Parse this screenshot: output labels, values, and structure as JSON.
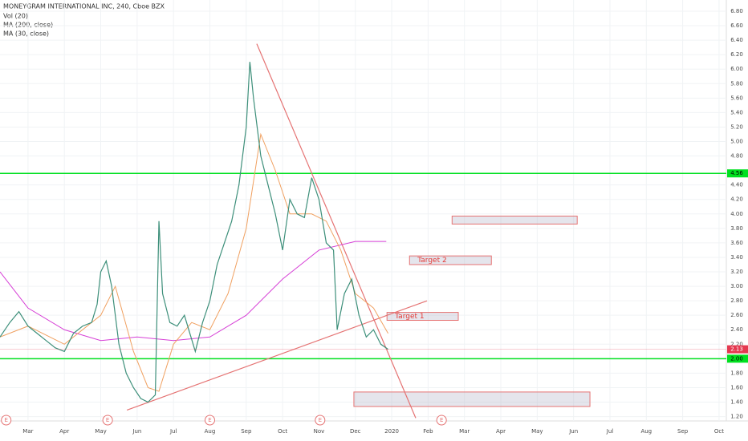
{
  "chart_data": {
    "type": "line",
    "title": "MONEYGRAM INTERNATIONAL INC, 240, Cboe BZX",
    "volume_label": "Vol (20)",
    "color": "#3d8f7a",
    "x": [
      -0.77,
      -0.5,
      -0.25,
      0,
      0.25,
      0.5,
      0.75,
      1.0,
      1.25,
      1.5,
      1.75,
      1.9,
      2.0,
      2.15,
      2.3,
      2.5,
      2.7,
      2.9,
      3.1,
      3.3,
      3.5,
      3.6,
      3.7,
      3.9,
      4.1,
      4.3,
      4.6,
      4.8,
      5.0,
      5.2,
      5.4,
      5.6,
      5.8,
      6.0,
      6.1,
      6.2,
      6.4,
      6.6,
      6.8,
      7.0,
      7.2,
      7.4,
      7.6,
      7.8,
      8.0,
      8.2,
      8.4,
      8.5,
      8.7,
      8.9,
      9.1,
      9.3,
      9.5,
      9.7,
      9.9
    ],
    "values": [
      2.3,
      2.5,
      2.65,
      2.45,
      2.35,
      2.25,
      2.15,
      2.1,
      2.35,
      2.45,
      2.5,
      2.75,
      3.2,
      3.35,
      3.0,
      2.2,
      1.8,
      1.6,
      1.45,
      1.4,
      1.5,
      3.9,
      2.9,
      2.5,
      2.45,
      2.6,
      2.1,
      2.5,
      2.8,
      3.3,
      3.6,
      3.9,
      4.4,
      5.2,
      6.1,
      5.6,
      4.8,
      4.4,
      4.0,
      3.5,
      4.2,
      4.0,
      3.95,
      4.5,
      4.2,
      3.6,
      3.5,
      2.4,
      2.9,
      3.1,
      2.6,
      2.3,
      2.4,
      2.2,
      2.13
    ],
    "series": [
      {
        "name": "MA (200, close)",
        "color": "#d63fd6",
        "x": [
          -0.77,
          0,
          1,
          2,
          3,
          4,
          5,
          6,
          7,
          8,
          9,
          9.85
        ],
        "values": [
          3.2,
          2.7,
          2.4,
          2.25,
          2.3,
          2.25,
          2.3,
          2.6,
          3.1,
          3.5,
          3.62,
          3.62
        ]
      },
      {
        "name": "MA (30, close)",
        "color": "#f0a060",
        "x": [
          -0.77,
          0,
          1,
          2,
          2.4,
          2.9,
          3.3,
          3.6,
          4,
          4.5,
          5,
          5.5,
          6,
          6.4,
          6.8,
          7.2,
          7.8,
          8.2,
          8.6,
          9,
          9.5,
          9.9
        ],
        "values": [
          2.3,
          2.45,
          2.2,
          2.6,
          3.0,
          2.1,
          1.6,
          1.55,
          2.2,
          2.5,
          2.4,
          2.9,
          3.8,
          5.1,
          4.6,
          4.0,
          4.0,
          3.9,
          3.5,
          2.9,
          2.7,
          2.35
        ]
      }
    ],
    "xlim": [
      -0.77,
      19.2
    ],
    "xticks": [
      {
        "value": 0,
        "label": "Mar"
      },
      {
        "value": 1,
        "label": "Apr"
      },
      {
        "value": 2,
        "label": "May"
      },
      {
        "value": 3,
        "label": "Jun"
      },
      {
        "value": 4,
        "label": "Jul"
      },
      {
        "value": 5,
        "label": "Aug"
      },
      {
        "value": 6,
        "label": "Sep"
      },
      {
        "value": 7,
        "label": "Oct"
      },
      {
        "value": 8,
        "label": "Nov"
      },
      {
        "value": 9,
        "label": "Dec"
      },
      {
        "value": 10,
        "label": "2020"
      },
      {
        "value": 11,
        "label": "Feb"
      },
      {
        "value": 12,
        "label": "Mar"
      },
      {
        "value": 13,
        "label": "Apr"
      },
      {
        "value": 14,
        "label": "May"
      },
      {
        "value": 15,
        "label": "Jun"
      },
      {
        "value": 16,
        "label": "Jul"
      },
      {
        "value": 17,
        "label": "Aug"
      },
      {
        "value": 18,
        "label": "Sep"
      },
      {
        "value": 19,
        "label": "Oct"
      }
    ],
    "ylim": [
      1.14,
      6.955
    ],
    "yticks": [
      {
        "value": 1.2,
        "label": "1.20"
      },
      {
        "value": 1.4,
        "label": "1.40"
      },
      {
        "value": 1.6,
        "label": "1.60"
      },
      {
        "value": 1.8,
        "label": "1.80"
      },
      {
        "value": 2.2,
        "label": "2.20"
      },
      {
        "value": 2.4,
        "label": "2.40"
      },
      {
        "value": 2.6,
        "label": "2.60"
      },
      {
        "value": 2.8,
        "label": "2.80"
      },
      {
        "value": 3.0,
        "label": "3.00"
      },
      {
        "value": 3.2,
        "label": "3.20"
      },
      {
        "value": 3.4,
        "label": "3.40"
      },
      {
        "value": 3.6,
        "label": "3.60"
      },
      {
        "value": 3.8,
        "label": "3.80"
      },
      {
        "value": 4.0,
        "label": "4.00"
      },
      {
        "value": 4.2,
        "label": "4.20"
      },
      {
        "value": 4.4,
        "label": "4.40"
      },
      {
        "value": 4.8,
        "label": "4.80"
      },
      {
        "value": 5.0,
        "label": "5.00"
      },
      {
        "value": 5.2,
        "label": "5.20"
      },
      {
        "value": 5.4,
        "label": "5.40"
      },
      {
        "value": 5.6,
        "label": "5.60"
      },
      {
        "value": 5.8,
        "label": "5.80"
      },
      {
        "value": 6.0,
        "label": "6.00"
      },
      {
        "value": 6.2,
        "label": "6.20"
      },
      {
        "value": 6.4,
        "label": "6.40"
      },
      {
        "value": 6.6,
        "label": "6.60"
      },
      {
        "value": 6.8,
        "label": "6.80"
      }
    ],
    "grid": true,
    "hlines": [
      {
        "value": 4.56,
        "label": "4.56",
        "color": "#00e020"
      },
      {
        "value": 2.0,
        "label": "2.00",
        "color": "#00e020"
      }
    ],
    "last_price": {
      "value": 2.13,
      "label": "2.13",
      "color": "#e53950"
    },
    "trendlines": [
      {
        "x": [
          6.29,
          10.66
        ],
        "y": [
          6.35,
          1.18
        ],
        "color": "#e57373"
      },
      {
        "x": [
          2.72,
          10.97
        ],
        "y": [
          1.29,
          2.8
        ],
        "color": "#e57373"
      }
    ],
    "zones": [
      {
        "x": [
          11.66,
          15.1
        ],
        "y": [
          3.97,
          3.86
        ]
      },
      {
        "x": [
          10.49,
          12.74
        ],
        "y": [
          3.42,
          3.3
        ],
        "label": "Target 2"
      },
      {
        "x": [
          9.87,
          11.83
        ],
        "y": [
          2.64,
          2.53
        ],
        "label": "Target 1"
      },
      {
        "x": [
          8.96,
          15.45
        ],
        "y": [
          1.54,
          1.34
        ]
      }
    ],
    "event_label": "E",
    "events_x": [
      -0.6,
      2.19,
      5.0,
      8.03,
      11.37
    ]
  }
}
